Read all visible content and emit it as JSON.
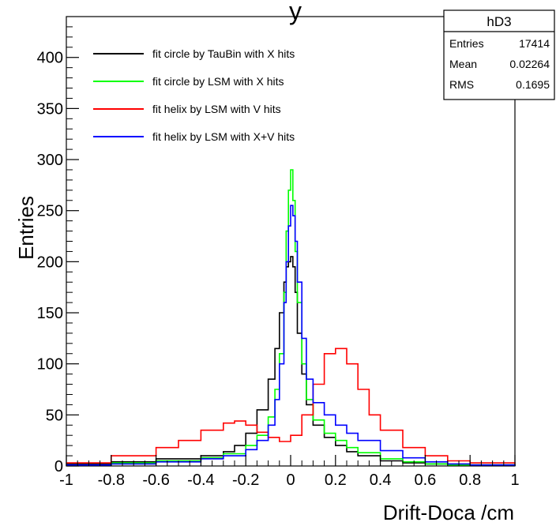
{
  "chart_data": {
    "type": "line",
    "title": "y",
    "xlabel": "Drift-Doca /cm",
    "ylabel": "Entries",
    "xlim": [
      -1,
      1
    ],
    "ylim": [
      0,
      440
    ],
    "xticks": [
      -1,
      -0.8,
      -0.6,
      -0.4,
      -0.2,
      0,
      0.2,
      0.4,
      0.6,
      0.8,
      1
    ],
    "xtick_labels": [
      "-1",
      "-0.8",
      "-0.6",
      "-0.4",
      "-0.2",
      "0",
      "0.2",
      "0.4",
      "0.6",
      "0.8",
      "1"
    ],
    "yticks": [
      0,
      50,
      100,
      150,
      200,
      250,
      300,
      350,
      400
    ],
    "ytick_labels": [
      "0",
      "50",
      "100",
      "150",
      "200",
      "250",
      "300",
      "350",
      "400"
    ],
    "grid": false,
    "legend_position": "top-left",
    "stats_box": {
      "name": "hD3",
      "rows": [
        {
          "label": "Entries",
          "value": "17414"
        },
        {
          "label": "Mean",
          "value": "0.02264"
        },
        {
          "label": "RMS",
          "value": "0.1695"
        }
      ]
    },
    "series": [
      {
        "name": "fit circle by TauBin with X hits",
        "color": "#000000",
        "x": [
          -1.0,
          -0.8,
          -0.6,
          -0.4,
          -0.3,
          -0.25,
          -0.2,
          -0.15,
          -0.1,
          -0.07,
          -0.05,
          -0.03,
          -0.02,
          -0.01,
          0.0,
          0.01,
          0.02,
          0.03,
          0.05,
          0.07,
          0.1,
          0.15,
          0.2,
          0.25,
          0.3,
          0.4,
          0.5,
          0.6,
          0.7,
          0.8,
          1.0
        ],
        "y": [
          2,
          4,
          7,
          10,
          14,
          20,
          32,
          55,
          85,
          115,
          150,
          180,
          195,
          200,
          205,
          195,
          170,
          130,
          90,
          60,
          40,
          28,
          20,
          14,
          10,
          5,
          3,
          2,
          1,
          1,
          0
        ]
      },
      {
        "name": "fit circle by LSM with X hits",
        "color": "#00ff00",
        "x": [
          -1.0,
          -0.8,
          -0.6,
          -0.4,
          -0.3,
          -0.2,
          -0.15,
          -0.1,
          -0.07,
          -0.05,
          -0.03,
          -0.02,
          -0.01,
          0.0,
          0.01,
          0.02,
          0.03,
          0.05,
          0.07,
          0.1,
          0.15,
          0.2,
          0.25,
          0.3,
          0.4,
          0.5,
          0.6,
          0.7,
          0.8,
          1.0
        ],
        "y": [
          1,
          3,
          5,
          8,
          12,
          20,
          30,
          48,
          75,
          110,
          170,
          230,
          270,
          290,
          260,
          210,
          160,
          100,
          65,
          45,
          32,
          25,
          18,
          13,
          7,
          4,
          2,
          1,
          1,
          0
        ]
      },
      {
        "name": "fit helix by LSM with V hits",
        "color": "#ff0000",
        "x": [
          -1.0,
          -0.8,
          -0.6,
          -0.5,
          -0.4,
          -0.3,
          -0.25,
          -0.2,
          -0.15,
          -0.1,
          -0.05,
          0.0,
          0.05,
          0.1,
          0.15,
          0.2,
          0.25,
          0.3,
          0.35,
          0.4,
          0.5,
          0.6,
          0.7,
          0.8,
          1.0
        ],
        "y": [
          3,
          10,
          18,
          25,
          35,
          42,
          44,
          40,
          33,
          28,
          24,
          30,
          50,
          80,
          110,
          115,
          100,
          75,
          50,
          35,
          18,
          10,
          5,
          3,
          2
        ]
      },
      {
        "name": "fit helix by LSM with X+V hits",
        "color": "#0000ff",
        "x": [
          -1.0,
          -0.8,
          -0.6,
          -0.4,
          -0.3,
          -0.2,
          -0.15,
          -0.1,
          -0.07,
          -0.05,
          -0.03,
          -0.02,
          -0.01,
          0.0,
          0.01,
          0.02,
          0.03,
          0.05,
          0.07,
          0.1,
          0.15,
          0.2,
          0.25,
          0.3,
          0.4,
          0.5,
          0.6,
          0.7,
          0.8,
          1.0
        ],
        "y": [
          1,
          2,
          4,
          7,
          10,
          16,
          25,
          40,
          65,
          100,
          160,
          200,
          235,
          255,
          245,
          220,
          180,
          125,
          85,
          62,
          50,
          40,
          32,
          25,
          15,
          8,
          4,
          2,
          1,
          0
        ]
      }
    ]
  }
}
